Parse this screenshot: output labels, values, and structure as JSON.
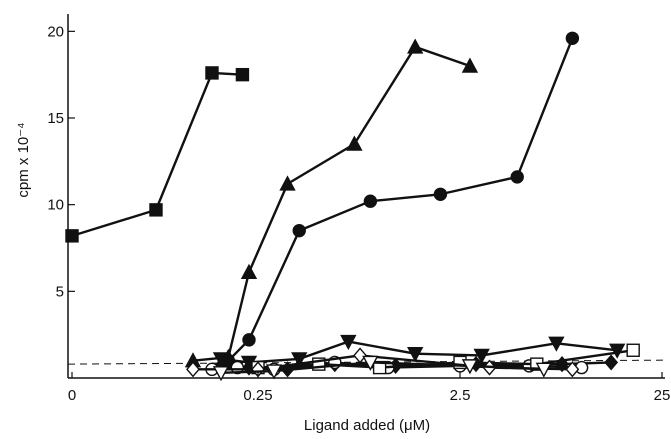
{
  "chart_data": {
    "type": "line",
    "title": "",
    "xlabel": "Ligand added (μM)",
    "ylabel": "cpm x 10⁻⁴",
    "x_scale": "log",
    "xlim": [
      0.0,
      25
    ],
    "ylim": [
      0,
      21
    ],
    "x_ticks": [
      {
        "value": 0.0,
        "label": "0"
      },
      {
        "value": 0.25,
        "label": "0.25"
      },
      {
        "value": 2.5,
        "label": "2.5"
      },
      {
        "value": 25,
        "label": "25"
      }
    ],
    "y_ticks": [
      {
        "value": 5,
        "label": "5"
      },
      {
        "value": 10,
        "label": "10"
      },
      {
        "value": 15,
        "label": "15"
      },
      {
        "value": 20,
        "label": "20"
      }
    ],
    "baseline": {
      "y": 0.8,
      "style": "dashed"
    },
    "series": [
      {
        "marker": "filled-square",
        "x": [
          0.0,
          0.02,
          0.08,
          0.17
        ],
        "y": [
          8.2,
          9.7,
          17.6,
          17.5
        ]
      },
      {
        "marker": "filled-triangle-up",
        "x": [
          0.05,
          0.12,
          0.2,
          0.35,
          0.75,
          1.5,
          2.8
        ],
        "y": [
          1.0,
          1.2,
          6.1,
          11.2,
          13.5,
          19.1,
          18.0
        ]
      },
      {
        "marker": "filled-circle",
        "x": [
          0.12,
          0.2,
          0.4,
          0.9,
          2.0,
          4.8,
          9.0
        ],
        "y": [
          1.0,
          2.2,
          8.5,
          10.2,
          10.6,
          11.6,
          19.6
        ]
      },
      {
        "marker": "filled-triangle-down",
        "x": [
          0.1,
          0.2,
          0.4,
          0.7,
          1.5,
          3.2,
          7.5,
          15
        ],
        "y": [
          1.1,
          0.9,
          1.1,
          2.1,
          1.4,
          1.3,
          2.0,
          1.6
        ]
      },
      {
        "marker": "filled-diamond",
        "x": [
          0.1,
          0.2,
          0.35,
          0.6,
          1.2,
          3.0,
          8.0,
          14
        ],
        "y": [
          0.7,
          0.6,
          0.5,
          0.8,
          0.7,
          0.8,
          0.8,
          0.9
        ]
      },
      {
        "marker": "open-circle",
        "x": [
          0.08,
          0.15,
          0.3,
          0.6,
          1.1,
          2.5,
          5.5,
          10
        ],
        "y": [
          0.5,
          0.6,
          0.5,
          0.9,
          0.6,
          0.7,
          0.7,
          0.6
        ]
      },
      {
        "marker": "open-square",
        "x": [
          0.25,
          0.5,
          1.0,
          2.5,
          6.0,
          18
        ],
        "y": [
          0.6,
          0.8,
          0.6,
          0.9,
          0.8,
          1.6
        ]
      },
      {
        "marker": "open-diamond",
        "x": [
          0.05,
          0.25,
          0.8,
          3.5,
          9.0
        ],
        "y": [
          0.5,
          0.5,
          1.3,
          0.6,
          0.5
        ]
      },
      {
        "marker": "open-triangle-down",
        "x": [
          0.1,
          0.3,
          0.9,
          2.8,
          6.5
        ],
        "y": [
          0.3,
          0.4,
          0.9,
          0.7,
          0.5
        ]
      }
    ]
  }
}
